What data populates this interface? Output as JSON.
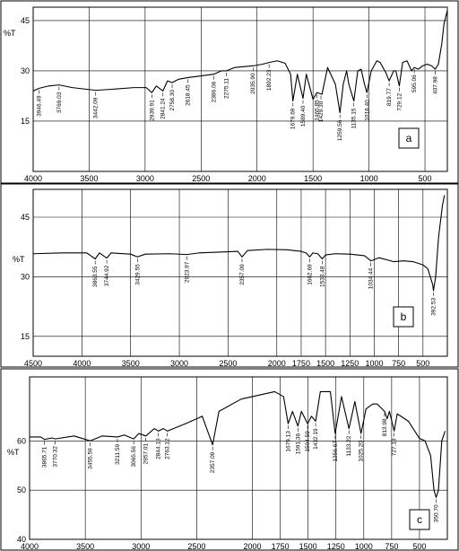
{
  "chart_data": [
    {
      "type": "line",
      "panel_label": "a",
      "ylabel": "%T",
      "xlim": [
        4000,
        300
      ],
      "ylim": [
        0,
        49
      ],
      "x_ticks": [
        "4000",
        "3500",
        "3000",
        "2500",
        "2000",
        "1500",
        "1000",
        "500"
      ],
      "x_tick_values": [
        4000,
        3500,
        3000,
        2500,
        2000,
        1500,
        1000,
        500
      ],
      "y_ticks": [
        "15",
        "30",
        "45"
      ],
      "y_tick_values": [
        15,
        30,
        45
      ],
      "series": [
        {
          "x": [
            4000,
            3946.49,
            3860,
            3769.03,
            3650,
            3442.09,
            3300,
            3100,
            2990,
            2939.91,
            2900,
            2841.24,
            2800,
            2758.3,
            2700,
            2618.45,
            2500,
            2386.06,
            2320,
            2275.11,
            2200,
            2035.9,
            1950,
            1892.23,
            1820,
            1750,
            1700,
            1679.69,
            1640,
            1589.4,
            1560,
            1500,
            1465.85,
            1460,
            1420,
            1370,
            1300,
            1259.56,
            1230,
            1200,
            1180,
            1135.15,
            1100,
            1070,
            1040,
            1018.4,
            980,
            930,
            900,
            850,
            819.77,
            780,
            760,
            729.12,
            700,
            660,
            620,
            595.06,
            560,
            520,
            480,
            440,
            407.98,
            380,
            350,
            330,
            300
          ],
          "y": [
            24,
            24.8,
            25.5,
            25.8,
            25.0,
            24.2,
            24.5,
            25.0,
            25.0,
            23.5,
            25.5,
            24.0,
            27.0,
            26.5,
            27.5,
            28.0,
            28.5,
            29.0,
            30.0,
            30.0,
            31.0,
            31.5,
            32.0,
            32.5,
            33.0,
            32.3,
            29.0,
            21.0,
            29.0,
            21.8,
            29.0,
            21.5,
            23.5,
            23.5,
            23.0,
            31.0,
            26.0,
            17.5,
            26.0,
            30.0,
            26.0,
            21.0,
            30.0,
            30.5,
            26.0,
            23.5,
            30.0,
            33.0,
            32.5,
            29.5,
            27.0,
            30.0,
            30.0,
            25.5,
            32.5,
            33.0,
            30.0,
            31.0,
            30.5,
            31.5,
            32.0,
            31.5,
            30.5,
            32.0,
            38.0,
            44.0,
            48.0
          ]
        }
      ],
      "peak_labels": [
        "3946.49",
        "3769.03",
        "3442.09",
        "2939.91",
        "2841.24",
        "2758.30",
        "2618.45",
        "2386.06",
        "2275.11",
        "2035.90",
        "1892.23",
        "1679.69",
        "1589.40",
        "1465.85",
        "1429.30",
        "1259.56",
        "1135.15",
        "1018.40",
        "819.77",
        "729.12",
        "595.06",
        "407.98"
      ],
      "peak_wavenumbers": [
        3946.49,
        3769.03,
        3442.09,
        2939.91,
        2841.24,
        2758.3,
        2618.45,
        2386.06,
        2275.11,
        2035.9,
        1892.23,
        1679.69,
        1589.4,
        1465.85,
        1429.3,
        1259.56,
        1135.15,
        1018.4,
        819.77,
        729.12,
        595.06,
        407.98
      ],
      "grid": true
    },
    {
      "type": "line",
      "panel_label": "b",
      "ylabel": "%T",
      "xlim": [
        4500,
        250
      ],
      "ylim": [
        10,
        52
      ],
      "x_ticks": [
        "4500",
        "4000",
        "3500",
        "3000",
        "2500",
        "2000",
        "1750",
        "1500",
        "1250",
        "1000",
        "750",
        "500"
      ],
      "x_tick_values": [
        4500,
        4000,
        3500,
        3000,
        2500,
        2000,
        1750,
        1500,
        1250,
        1000,
        750,
        500
      ],
      "y_ticks": [
        "15",
        "30",
        "45"
      ],
      "y_tick_values": [
        15,
        30,
        45
      ],
      "series": [
        {
          "x": [
            4500,
            4200,
            3950,
            3863.55,
            3820,
            3744.92,
            3700,
            3500,
            3429.55,
            3350,
            3100,
            2923.97,
            2800,
            2500,
            2400,
            2357.09,
            2300,
            2100,
            1900,
            1750,
            1700,
            1662.69,
            1630,
            1580,
            1533.48,
            1500,
            1400,
            1250,
            1100,
            1034.44,
            950,
            800,
            700,
            600,
            500,
            450,
            400,
            392.53,
            370,
            340,
            300,
            280
          ],
          "y": [
            35.8,
            36.0,
            36.0,
            34.5,
            36.0,
            34.7,
            36.0,
            35.7,
            35.0,
            35.7,
            35.8,
            35.6,
            36.0,
            36.3,
            36.4,
            35.0,
            36.6,
            36.9,
            36.8,
            36.4,
            36.0,
            35.0,
            36.0,
            35.8,
            34.5,
            35.5,
            35.8,
            35.7,
            35.3,
            34.0,
            34.8,
            33.8,
            34.0,
            33.8,
            33.0,
            32.0,
            28.0,
            26.5,
            30.0,
            40.0,
            48.0,
            50.5
          ]
        }
      ],
      "peak_labels": [
        "3863.55",
        "3744.92",
        "3429.55",
        "2923.97",
        "2357.09",
        "1662.69",
        "1533.48",
        "1034.44",
        "392.53"
      ],
      "peak_wavenumbers": [
        3863.55,
        3744.92,
        3429.55,
        2923.97,
        2357.09,
        1662.69,
        1533.48,
        1034.44,
        392.53
      ],
      "grid": true
    },
    {
      "type": "line",
      "panel_label": "c",
      "ylabel": "%T",
      "xlim": [
        4000,
        250
      ],
      "ylim": [
        40,
        73
      ],
      "x_ticks": [
        "4000",
        "3500",
        "3000",
        "2500",
        "2000",
        "1750",
        "1500",
        "1250",
        "1000",
        "750",
        "500"
      ],
      "x_tick_values": [
        4000,
        3500,
        3000,
        2500,
        2000,
        1750,
        1500,
        1250,
        1000,
        750,
        500
      ],
      "y_ticks": [
        "40",
        "50",
        "60"
      ],
      "y_tick_values": [
        40,
        50,
        60
      ],
      "series": [
        {
          "x": [
            4000,
            3900,
            3865.71,
            3800,
            3770.32,
            3600,
            3455.59,
            3350,
            3211.59,
            3150,
            3065.56,
            3020,
            2957.01,
            2880,
            2844.13,
            2800,
            2763.12,
            2600,
            2450,
            2357.09,
            2300,
            2100,
            1900,
            1800,
            1720,
            1679.13,
            1640,
            1591.36,
            1560,
            1504.59,
            1470,
            1432.19,
            1390,
            1300,
            1256.67,
            1200,
            1133.22,
            1080,
            1025.2,
            980,
            920,
            880,
            813.98,
            790,
            770,
            727.19,
            700,
            600,
            500,
            450,
            400,
            370,
            350.7,
            330,
            300,
            270
          ],
          "y": [
            60.8,
            60.8,
            60.3,
            60.6,
            60.4,
            61.0,
            60.0,
            61.0,
            60.8,
            61.2,
            60.4,
            61.5,
            61.0,
            62.5,
            62.0,
            62.5,
            62.0,
            63.5,
            65.0,
            59.2,
            66.0,
            68.5,
            69.5,
            70.0,
            69.0,
            63.5,
            66.0,
            63.0,
            66.0,
            63.5,
            65.0,
            64.0,
            70.0,
            70.0,
            61.5,
            69.0,
            62.5,
            68.0,
            61.5,
            66.5,
            67.5,
            67.5,
            66.0,
            64.5,
            66.0,
            62.0,
            65.5,
            64.0,
            60.5,
            60.0,
            57.0,
            50.0,
            48.5,
            50.0,
            60.0,
            62.0
          ]
        }
      ],
      "peak_labels": [
        "3865.71",
        "3770.32",
        "3455.59",
        "3211.59",
        "3065.56",
        "2957.01",
        "2844.13",
        "2763.12",
        "2357.09",
        "1679.13",
        "1591.36",
        "1504.59",
        "1432.19",
        "1256.67",
        "1133.22",
        "1025.20",
        "813.98",
        "727.19",
        "350.70"
      ],
      "peak_wavenumbers": [
        3865.71,
        3770.32,
        3455.59,
        3211.59,
        3065.56,
        2957.01,
        2844.13,
        2763.12,
        2357.09,
        1679.13,
        1591.36,
        1504.59,
        1432.19,
        1256.67,
        1133.22,
        1025.2,
        813.98,
        727.19,
        350.7
      ],
      "grid": true
    }
  ]
}
